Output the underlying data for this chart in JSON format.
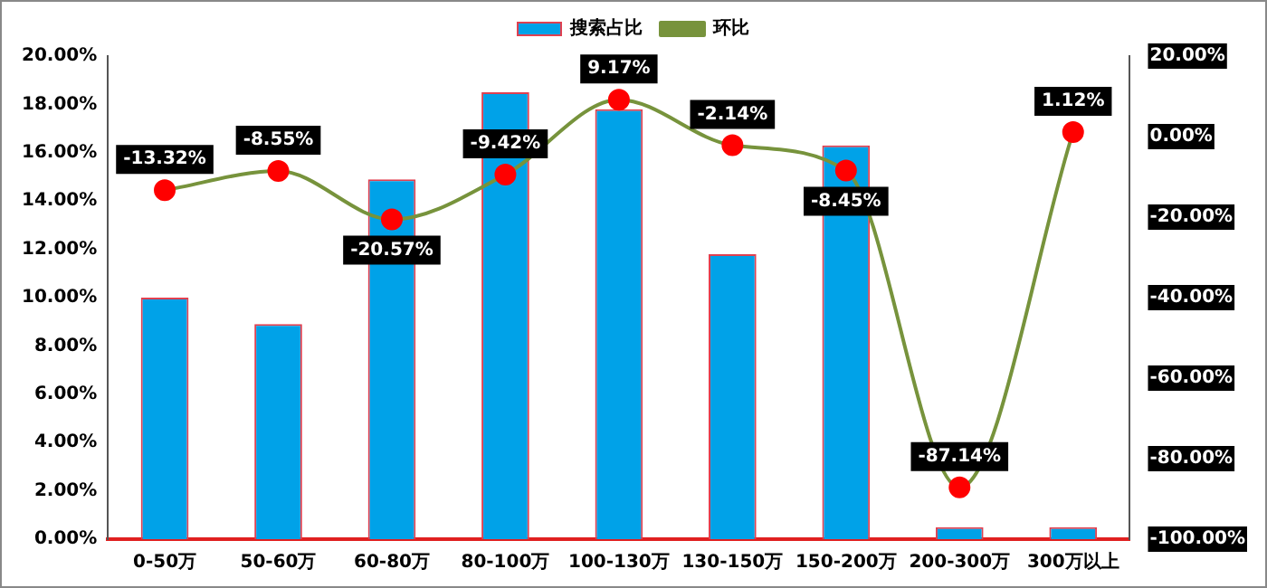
{
  "chart_data": {
    "type": "bar",
    "categories": [
      "0-50万",
      "50-60万",
      "60-80万",
      "80-100万",
      "100-130万",
      "130-150万",
      "150-200万",
      "200-300万",
      "300万以上"
    ],
    "series": [
      {
        "name": "搜索占比",
        "color": "#00a2e8",
        "values": [
          10.0,
          8.9,
          14.9,
          18.5,
          17.8,
          11.8,
          16.3,
          0.5,
          0.5
        ]
      },
      {
        "name": "环比",
        "type": "line",
        "axis": "y2",
        "color": "#77933c",
        "colors": [
          "#ff0000",
          "#ff0000",
          "#ff0000",
          "#ff0000",
          "#ff0000",
          "#ff0000",
          "#ff0000",
          "#ff0000",
          "#ff0000"
        ],
        "marker": "circle",
        "values": [
          -13.32,
          -8.55,
          -20.57,
          -9.42,
          9.17,
          -2.14,
          -8.45,
          -87.14,
          1.12
        ],
        "value_labels": [
          "-13.32%",
          "-8.55%",
          "-20.57%",
          "-9.42%",
          "9.17%",
          "-2.14%",
          "-8.45%",
          "-87.14%",
          "1.12%"
        ]
      }
    ],
    "ylim": [
      0,
      20
    ],
    "yticks": [
      {
        "value": 0,
        "label": "0.00%"
      },
      {
        "value": 2,
        "label": "2.00%"
      },
      {
        "value": 4,
        "label": "4.00%"
      },
      {
        "value": 6,
        "label": "6.00%"
      },
      {
        "value": 8,
        "label": "8.00%"
      },
      {
        "value": 10,
        "label": "10.00%"
      },
      {
        "value": 12,
        "label": "12.00%"
      },
      {
        "value": 14,
        "label": "14.00%"
      },
      {
        "value": 16,
        "label": "16.00%"
      },
      {
        "value": 18,
        "label": "18.00%"
      },
      {
        "value": 20,
        "label": "20.00%"
      }
    ],
    "y2lim": [
      -100,
      20
    ],
    "y2ticks": [
      {
        "value": -100,
        "label": "-100.00%"
      },
      {
        "value": -80,
        "label": "-80.00%"
      },
      {
        "value": -60,
        "label": "-60.00%"
      },
      {
        "value": -40,
        "label": "-40.00%"
      },
      {
        "value": -20,
        "label": "-20.00%"
      },
      {
        "value": 0,
        "label": "0.00%"
      },
      {
        "value": 20,
        "label": "20.00%"
      }
    ],
    "grid": false,
    "legend": "top"
  }
}
